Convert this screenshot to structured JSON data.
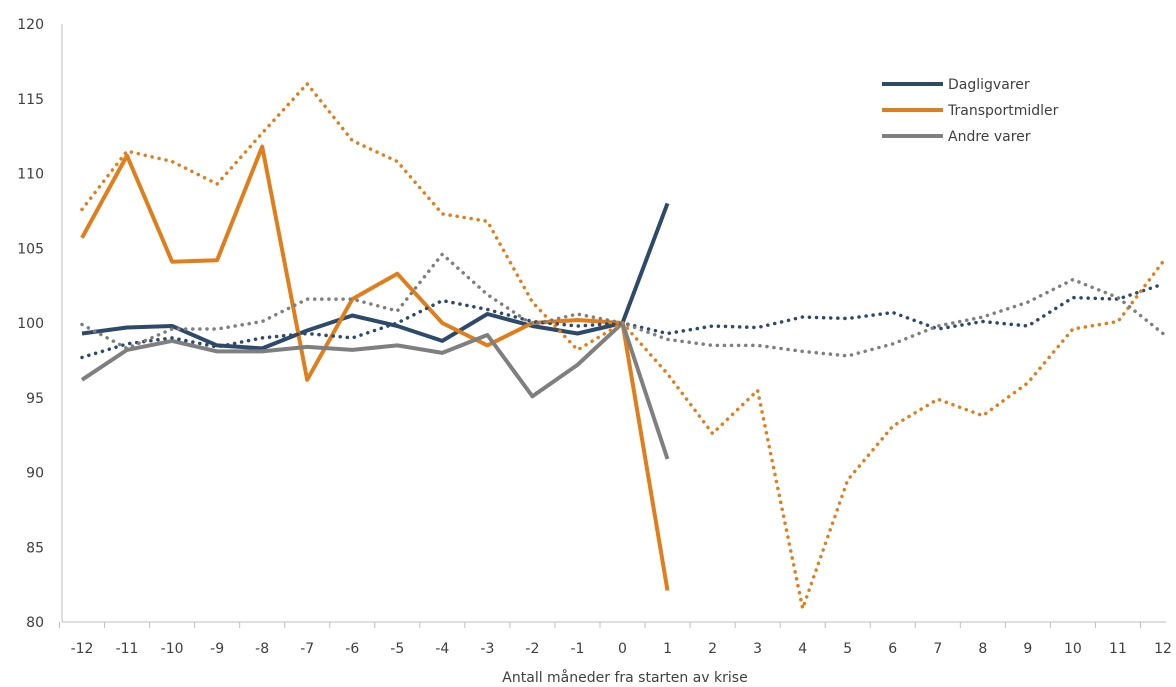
{
  "chart_data": {
    "type": "line",
    "xlabel": "Antall måneder fra starten av krise",
    "ylabel": "",
    "ylim": [
      80,
      120
    ],
    "yticks": [
      80,
      85,
      90,
      95,
      100,
      105,
      110,
      115,
      120
    ],
    "xlim": [
      -12,
      12
    ],
    "xticks": [
      -12,
      -11,
      -10,
      -9,
      -8,
      -7,
      -6,
      -5,
      -4,
      -3,
      -2,
      -1,
      0,
      1,
      2,
      3,
      4,
      5,
      6,
      7,
      8,
      9,
      10,
      11,
      12
    ],
    "grid": false,
    "legend_position": "top-right",
    "series": [
      {
        "name": "Dagligvarer",
        "style": "solid",
        "color": "#2e4a6b",
        "x": [
          -12,
          -11,
          -10,
          -9,
          -8,
          -7,
          -6,
          -5,
          -4,
          -3,
          -2,
          -1,
          0,
          1
        ],
        "values": [
          99.3,
          99.7,
          99.8,
          98.5,
          98.3,
          99.5,
          100.5,
          99.8,
          98.8,
          100.6,
          99.8,
          99.3,
          100.0,
          108.0
        ]
      },
      {
        "name": "Transportmidler",
        "style": "solid",
        "color": "#e07e1b",
        "x": [
          -12,
          -11,
          -10,
          -9,
          -8,
          -7,
          -6,
          -5,
          -4,
          -3,
          -2,
          -1,
          0,
          1
        ],
        "values": [
          105.7,
          111.2,
          104.1,
          104.2,
          111.8,
          96.2,
          101.6,
          103.3,
          100.0,
          98.5,
          100.0,
          100.2,
          100.0,
          82.1
        ]
      },
      {
        "name": "Andre varer",
        "style": "solid",
        "color": "#7f7f7f",
        "x": [
          -12,
          -11,
          -10,
          -9,
          -8,
          -7,
          -6,
          -5,
          -4,
          -3,
          -2,
          -1,
          0,
          1
        ],
        "values": [
          96.2,
          98.2,
          98.8,
          98.1,
          98.1,
          98.4,
          98.2,
          98.5,
          98.0,
          99.2,
          95.1,
          97.2,
          100.0,
          90.9
        ]
      },
      {
        "style": "dotted",
        "color": "#2e4a6b",
        "x": [
          -12,
          -11,
          -10,
          -9,
          -8,
          -7,
          -6,
          -5,
          -4,
          -3,
          -2,
          -1,
          0,
          1,
          2,
          3,
          4,
          5,
          6,
          7,
          8,
          9,
          10,
          11,
          12
        ],
        "values": [
          97.7,
          98.6,
          99.0,
          98.4,
          99.0,
          99.3,
          99.0,
          100.0,
          101.5,
          100.9,
          100.1,
          99.8,
          100.0,
          99.3,
          99.8,
          99.7,
          100.4,
          100.3,
          100.7,
          99.6,
          100.1,
          99.8,
          101.7,
          101.6,
          102.6
        ]
      },
      {
        "style": "dotted",
        "color": "#e07e1b",
        "x": [
          -12,
          -11,
          -10,
          -9,
          -8,
          -7,
          -6,
          -5,
          -4,
          -3,
          -2,
          -1,
          0,
          1,
          2,
          3,
          4,
          5,
          6,
          7,
          8,
          9,
          10,
          11,
          12
        ],
        "values": [
          107.6,
          111.5,
          110.8,
          109.3,
          112.7,
          116.0,
          112.2,
          110.8,
          107.3,
          106.8,
          101.4,
          98.2,
          100.0,
          96.6,
          92.6,
          95.5,
          80.9,
          89.5,
          93.1,
          94.9,
          93.8,
          96.0,
          99.6,
          100.1,
          104.1
        ]
      },
      {
        "style": "dotted",
        "color": "#7f7f7f",
        "x": [
          -12,
          -11,
          -10,
          -9,
          -8,
          -7,
          -6,
          -5,
          -4,
          -3,
          -2,
          -1,
          0,
          1,
          2,
          3,
          4,
          5,
          6,
          7,
          8,
          9,
          10,
          11,
          12
        ],
        "values": [
          99.9,
          98.3,
          99.6,
          99.6,
          100.1,
          101.6,
          101.6,
          100.8,
          104.6,
          101.9,
          99.9,
          100.6,
          100.0,
          98.9,
          98.5,
          98.5,
          98.1,
          97.8,
          98.6,
          99.8,
          100.4,
          101.4,
          102.9,
          101.7,
          99.3
        ]
      }
    ]
  }
}
